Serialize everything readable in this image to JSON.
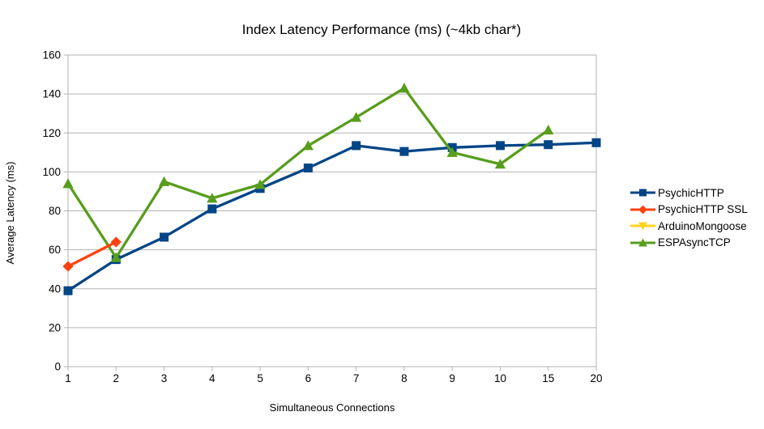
{
  "chart_data": {
    "type": "line",
    "title": "Index Latency Performance (ms) (~4kb char*)",
    "xlabel": "Simultaneous Connections",
    "ylabel": "Average Latency (ms)",
    "categories": [
      "1",
      "2",
      "3",
      "4",
      "5",
      "6",
      "7",
      "8",
      "9",
      "10",
      "15",
      "20"
    ],
    "ylim": [
      0,
      160
    ],
    "yticks": [
      0,
      20,
      40,
      60,
      80,
      100,
      120,
      140,
      160
    ],
    "grid": "horizontal-only",
    "legend_position": "right",
    "series": [
      {
        "name": "PsychicHTTP",
        "color": "#004586",
        "marker": "square",
        "values": [
          39,
          55,
          66.5,
          81,
          91.5,
          102,
          113.5,
          110.5,
          112.5,
          113.5,
          114,
          115
        ]
      },
      {
        "name": "PsychicHTTP SSL",
        "color": "#FF420E",
        "marker": "diamond",
        "values": [
          51.5,
          64,
          null,
          null,
          null,
          null,
          null,
          null,
          null,
          null,
          null,
          null
        ]
      },
      {
        "name": "ArduinoMongoose",
        "color": "#FFD320",
        "marker": "triangle-down",
        "values": [
          null,
          null,
          null,
          null,
          null,
          null,
          null,
          null,
          null,
          null,
          null,
          null
        ]
      },
      {
        "name": "ESPAsyncTCP",
        "color": "#579D1C",
        "marker": "triangle-up",
        "values": [
          94,
          56,
          95,
          86.5,
          93.5,
          113.5,
          128,
          143,
          110,
          104,
          121.5,
          null
        ]
      }
    ],
    "colors": {
      "gridline": "#b3b3b3",
      "axis": "#b3b3b3",
      "text": "#000000",
      "background": "#ffffff"
    }
  }
}
